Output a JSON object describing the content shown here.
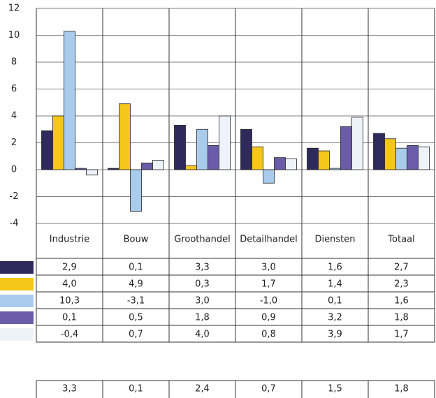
{
  "chart_data": {
    "type": "bar",
    "categories": [
      "Industrie",
      "Bouw",
      "Groothandel",
      "Detailhandel",
      "Diensten",
      "Totaal"
    ],
    "series": [
      {
        "color": "#2e2b5c",
        "values": [
          2.9,
          0.1,
          3.3,
          3.0,
          1.6,
          2.7
        ],
        "value_labels": [
          "2,9",
          "0,1",
          "3,3",
          "3,0",
          "1,6",
          "2,7"
        ]
      },
      {
        "color": "#f6c619",
        "values": [
          4.0,
          4.9,
          0.3,
          1.7,
          1.4,
          2.3
        ],
        "value_labels": [
          "4,0",
          "4,9",
          "0,3",
          "1,7",
          "1,4",
          "2,3"
        ]
      },
      {
        "color": "#a9cbec",
        "values": [
          10.3,
          -3.1,
          3.0,
          -1.0,
          0.1,
          1.6
        ],
        "value_labels": [
          "10,3",
          "-3,1",
          "3,0",
          "-1,0",
          "0,1",
          "1,6"
        ]
      },
      {
        "color": "#6a5ca8",
        "values": [
          0.1,
          0.5,
          1.8,
          0.9,
          3.2,
          1.8
        ],
        "value_labels": [
          "0,1",
          "0,5",
          "1,8",
          "0,9",
          "3,2",
          "1,8"
        ]
      },
      {
        "color": "#eef3fa",
        "values": [
          -0.4,
          0.7,
          4.0,
          0.8,
          3.9,
          1.7
        ],
        "value_labels": [
          "-0,4",
          "0,7",
          "4,0",
          "0,8",
          "3,9",
          "1,7"
        ]
      }
    ],
    "summary_row": [
      "3,3",
      "0,1",
      "2,4",
      "0,7",
      "1,5",
      "1,8"
    ],
    "ylim": [
      -4,
      12
    ],
    "yticks": [
      -4,
      -2,
      0,
      2,
      4,
      6,
      8,
      10,
      12
    ],
    "grid": true
  }
}
